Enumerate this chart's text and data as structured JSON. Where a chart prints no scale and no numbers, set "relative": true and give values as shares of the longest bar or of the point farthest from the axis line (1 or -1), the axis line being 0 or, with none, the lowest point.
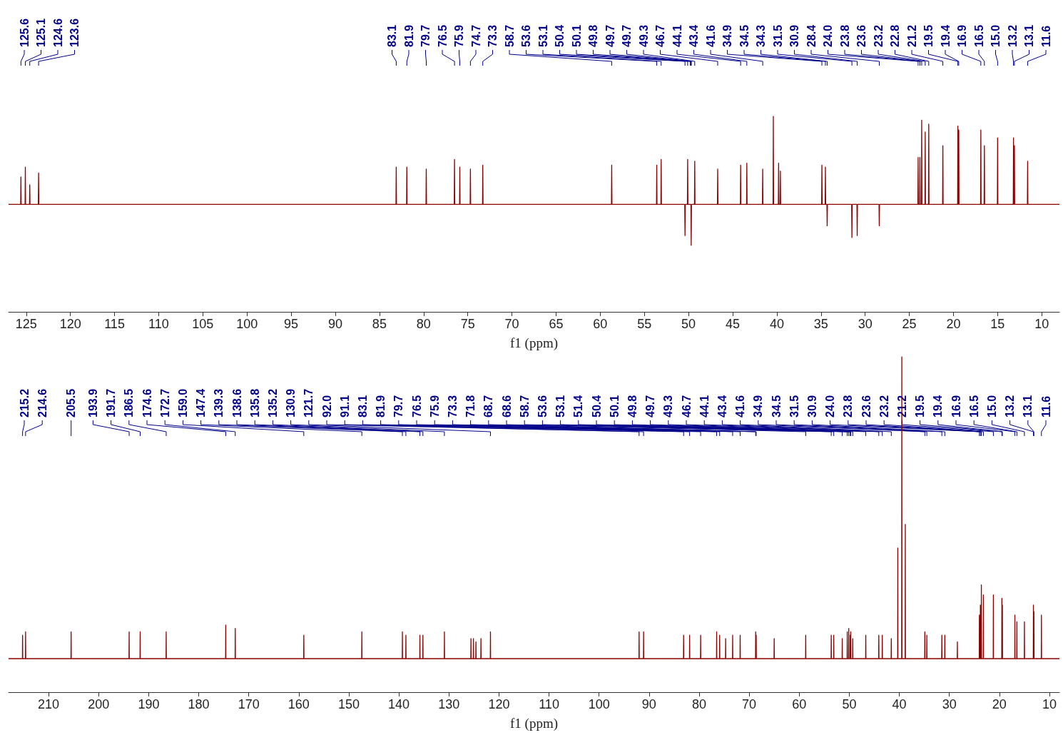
{
  "chart_data": [
    {
      "type": "line",
      "relative": true,
      "marker": "none",
      "line_style": "solid",
      "color": "#8b0000",
      "xlabel": "f1 (ppm)",
      "xlim": [
        127,
        8
      ],
      "xticks": [
        125,
        120,
        115,
        110,
        105,
        100,
        95,
        90,
        85,
        80,
        75,
        70,
        65,
        60,
        55,
        50,
        45,
        40,
        35,
        30,
        25,
        20,
        15,
        10
      ],
      "x": [
        127,
        125.63,
        125.6,
        125.57,
        125.13,
        125.1,
        125.07,
        124.63,
        124.6,
        124.57,
        123.63,
        123.6,
        123.57,
        83.13,
        83.1,
        83.07,
        81.93,
        81.9,
        81.87,
        79.73,
        79.7,
        79.67,
        76.53,
        76.5,
        76.47,
        75.93,
        75.9,
        75.87,
        74.73,
        74.7,
        74.67,
        73.33,
        73.3,
        73.27,
        58.73,
        58.7,
        58.67,
        53.63,
        53.6,
        53.57,
        53.13,
        53.1,
        53.07,
        50.43,
        50.4,
        50.37,
        50.13,
        50.1,
        50.07,
        49.73,
        49.7,
        49.67,
        49.33,
        49.3,
        49.27,
        46.73,
        46.7,
        46.67,
        44.13,
        44.1,
        44.07,
        43.43,
        43.4,
        43.37,
        41.63,
        41.6,
        41.57,
        40.43,
        40.4,
        40.37,
        39.83,
        39.8,
        39.77,
        39.63,
        39.6,
        39.57,
        34.93,
        34.9,
        34.87,
        34.53,
        34.5,
        34.47,
        34.33,
        34.3,
        34.27,
        31.53,
        31.5,
        31.47,
        30.93,
        30.9,
        30.87,
        28.43,
        28.4,
        28.37,
        24.03,
        24,
        23.97,
        23.83,
        23.8,
        23.77,
        23.63,
        23.6,
        23.57,
        23.23,
        23.2,
        23.17,
        22.83,
        22.8,
        22.77,
        21.23,
        21.2,
        21.17,
        19.53,
        19.5,
        19.47,
        19.43,
        19.4,
        19.37,
        16.93,
        16.9,
        16.87,
        16.53,
        16.5,
        16.47,
        15.03,
        15,
        14.97,
        13.23,
        13.2,
        13.17,
        13.13,
        13.1,
        13.07,
        11.63,
        11.6,
        11.57,
        8
      ],
      "values": [
        0.55,
        0.55,
        0.69,
        0.55,
        0.55,
        0.74,
        0.55,
        0.55,
        0.65,
        0.55,
        0.55,
        0.71,
        0.55,
        0.55,
        0.74,
        0.55,
        0.55,
        0.74,
        0.55,
        0.55,
        0.73,
        0.55,
        0.55,
        0.78,
        0.55,
        0.55,
        0.74,
        0.55,
        0.55,
        0.73,
        0.55,
        0.55,
        0.75,
        0.55,
        0.55,
        0.75,
        0.55,
        0.55,
        0.75,
        0.55,
        0.55,
        0.78,
        0.55,
        0.55,
        0.39,
        0.55,
        0.55,
        0.78,
        0.55,
        0.55,
        0.34,
        0.55,
        0.55,
        0.77,
        0.55,
        0.55,
        0.73,
        0.55,
        0.55,
        0.75,
        0.55,
        0.55,
        0.76,
        0.55,
        0.55,
        0.73,
        0.55,
        0.55,
        1,
        0.55,
        0.55,
        0.76,
        0.55,
        0.55,
        0.72,
        0.55,
        0.55,
        0.75,
        0.55,
        0.55,
        0.74,
        0.55,
        0.55,
        0.44,
        0.55,
        0.55,
        0.38,
        0.55,
        0.55,
        0.39,
        0.55,
        0.55,
        0.44,
        0.55,
        0.55,
        0.79,
        0.55,
        0.55,
        0.79,
        0.55,
        0.55,
        0.98,
        0.55,
        0.55,
        0.92,
        0.55,
        0.55,
        0.96,
        0.55,
        0.55,
        0.85,
        0.55,
        0.55,
        0.95,
        0.55,
        0.55,
        0.93,
        0.55,
        0.55,
        0.93,
        0.55,
        0.55,
        0.85,
        0.55,
        0.55,
        0.89,
        0.55,
        0.55,
        0.89,
        0.55,
        0.55,
        0.85,
        0.55,
        0.55,
        0.77,
        0.55,
        0.55
      ],
      "annotations": [
        {
          "text": "125.6",
          "x": 125.6
        },
        {
          "text": "125.1",
          "x": 125.1
        },
        {
          "text": "124.6",
          "x": 124.6
        },
        {
          "text": "123.6",
          "x": 123.6
        },
        {
          "text": "83.1",
          "x": 83.1
        },
        {
          "text": "81.9",
          "x": 81.9
        },
        {
          "text": "79.7",
          "x": 79.7
        },
        {
          "text": "76.5",
          "x": 76.5
        },
        {
          "text": "75.9",
          "x": 75.9
        },
        {
          "text": "74.7",
          "x": 74.7
        },
        {
          "text": "73.3",
          "x": 73.3
        },
        {
          "text": "58.7",
          "x": 58.7
        },
        {
          "text": "53.6",
          "x": 53.6
        },
        {
          "text": "53.1",
          "x": 53.1
        },
        {
          "text": "50.4",
          "x": 50.4
        },
        {
          "text": "50.1",
          "x": 50.1
        },
        {
          "text": "49.8",
          "x": 49.8
        },
        {
          "text": "49.7",
          "x": 49.7
        },
        {
          "text": "49.7",
          "x": 49.7
        },
        {
          "text": "49.3",
          "x": 49.3
        },
        {
          "text": "46.7",
          "x": 46.7
        },
        {
          "text": "44.1",
          "x": 44.1
        },
        {
          "text": "43.4",
          "x": 43.4
        },
        {
          "text": "41.6",
          "x": 41.6
        },
        {
          "text": "34.9",
          "x": 34.9
        },
        {
          "text": "34.5",
          "x": 34.5
        },
        {
          "text": "34.3",
          "x": 34.3
        },
        {
          "text": "31.5",
          "x": 31.5
        },
        {
          "text": "30.9",
          "x": 30.9
        },
        {
          "text": "28.4",
          "x": 28.4
        },
        {
          "text": "24.0",
          "x": 24.0
        },
        {
          "text": "23.8",
          "x": 23.8
        },
        {
          "text": "23.6",
          "x": 23.6
        },
        {
          "text": "23.2",
          "x": 23.2
        },
        {
          "text": "22.8",
          "x": 22.8
        },
        {
          "text": "21.2",
          "x": 21.2
        },
        {
          "text": "19.5",
          "x": 19.5
        },
        {
          "text": "19.4",
          "x": 19.4
        },
        {
          "text": "16.9",
          "x": 16.9
        },
        {
          "text": "16.5",
          "x": 16.5
        },
        {
          "text": "15.0",
          "x": 15.0
        },
        {
          "text": "13.2",
          "x": 13.2
        },
        {
          "text": "13.1",
          "x": 13.1
        },
        {
          "text": "11.6",
          "x": 11.6
        }
      ]
    },
    {
      "type": "line",
      "relative": true,
      "marker": "none",
      "line_style": "solid",
      "color": "#8b0000",
      "xlabel": "f1 (ppm)",
      "xlim": [
        218,
        8
      ],
      "xticks": [
        210,
        200,
        190,
        180,
        170,
        160,
        150,
        140,
        130,
        120,
        110,
        100,
        90,
        80,
        70,
        60,
        50,
        40,
        30,
        20,
        10
      ],
      "x": [
        218,
        215.23,
        215.2,
        215.17,
        214.63,
        214.6,
        214.57,
        205.53,
        205.5,
        205.47,
        193.93,
        193.9,
        193.87,
        191.73,
        191.7,
        191.67,
        186.53,
        186.5,
        186.47,
        174.63,
        174.6,
        174.57,
        172.73,
        172.7,
        172.67,
        159.03,
        159,
        158.97,
        147.43,
        147.4,
        147.37,
        139.33,
        139.3,
        139.27,
        138.63,
        138.6,
        138.57,
        135.83,
        135.8,
        135.77,
        135.23,
        135.2,
        135.17,
        130.93,
        130.9,
        130.87,
        125.63,
        125.6,
        125.57,
        125.13,
        125.1,
        125.07,
        124.63,
        124.6,
        124.57,
        123.63,
        123.6,
        123.57,
        121.73,
        121.7,
        121.67,
        92.03,
        92,
        91.97,
        91.13,
        91.1,
        91.07,
        83.13,
        83.1,
        83.07,
        81.93,
        81.9,
        81.87,
        79.73,
        79.7,
        79.67,
        76.53,
        76.5,
        76.47,
        75.93,
        75.9,
        75.87,
        74.73,
        74.7,
        74.67,
        73.33,
        73.3,
        73.27,
        71.83,
        71.8,
        71.77,
        68.73,
        68.7,
        68.67,
        68.63,
        68.6,
        68.57,
        65.03,
        65,
        64.97,
        58.73,
        58.7,
        58.67,
        53.63,
        53.6,
        53.57,
        53.13,
        53.1,
        53.07,
        51.43,
        51.4,
        51.37,
        50.43,
        50.4,
        50.37,
        50.13,
        50.1,
        50.07,
        49.83,
        49.8,
        49.77,
        49.73,
        49.7,
        49.67,
        49.33,
        49.3,
        49.27,
        46.73,
        46.7,
        46.67,
        44.13,
        44.1,
        44.07,
        43.43,
        43.4,
        43.37,
        41.63,
        41.6,
        41.57,
        40.33,
        40.3,
        40.27,
        39.53,
        39.5,
        39.47,
        38.83,
        38.8,
        38.77,
        34.93,
        34.9,
        34.87,
        34.53,
        34.5,
        34.47,
        31.53,
        31.5,
        31.47,
        30.93,
        30.9,
        30.87,
        28.43,
        28.4,
        28.37,
        24.03,
        24,
        23.97,
        23.83,
        23.8,
        23.77,
        23.63,
        23.6,
        23.57,
        23.23,
        23.2,
        23.17,
        21.23,
        21.2,
        21.17,
        19.53,
        19.5,
        19.47,
        19.43,
        19.4,
        19.37,
        16.93,
        16.9,
        16.87,
        16.53,
        16.5,
        16.47,
        15.03,
        15,
        14.97,
        13.23,
        13.2,
        13.17,
        13.13,
        13.1,
        13.07,
        11.63,
        11.6,
        11.57,
        8
      ],
      "values": [
        0.1,
        0.1,
        0.17,
        0.1,
        0.1,
        0.18,
        0.1,
        0.1,
        0.18,
        0.1,
        0.1,
        0.18,
        0.1,
        0.1,
        0.18,
        0.1,
        0.1,
        0.18,
        0.1,
        0.1,
        0.2,
        0.1,
        0.1,
        0.19,
        0.1,
        0.1,
        0.17,
        0.1,
        0.1,
        0.18,
        0.1,
        0.1,
        0.18,
        0.1,
        0.1,
        0.17,
        0.1,
        0.1,
        0.17,
        0.1,
        0.1,
        0.17,
        0.1,
        0.1,
        0.18,
        0.1,
        0.1,
        0.16,
        0.1,
        0.1,
        0.16,
        0.1,
        0.1,
        0.15,
        0.1,
        0.1,
        0.16,
        0.1,
        0.1,
        0.18,
        0.1,
        0.1,
        0.18,
        0.1,
        0.1,
        0.18,
        0.1,
        0.1,
        0.17,
        0.1,
        0.1,
        0.17,
        0.1,
        0.1,
        0.17,
        0.1,
        0.1,
        0.18,
        0.1,
        0.1,
        0.17,
        0.1,
        0.1,
        0.16,
        0.1,
        0.1,
        0.17,
        0.1,
        0.1,
        0.17,
        0.1,
        0.1,
        0.18,
        0.1,
        0.1,
        0.17,
        0.1,
        0.1,
        0.16,
        0.1,
        0.1,
        0.17,
        0.1,
        0.1,
        0.17,
        0.1,
        0.1,
        0.17,
        0.1,
        0.1,
        0.16,
        0.1,
        0.1,
        0.18,
        0.1,
        0.1,
        0.19,
        0.1,
        0.1,
        0.17,
        0.1,
        0.1,
        0.18,
        0.1,
        0.1,
        0.16,
        0.1,
        0.1,
        0.17,
        0.1,
        0.1,
        0.17,
        0.1,
        0.1,
        0.17,
        0.1,
        0.1,
        0.16,
        0.1,
        0.1,
        0.43,
        0.1,
        0.1,
        1,
        0.1,
        0.1,
        0.5,
        0.1,
        0.1,
        0.18,
        0.1,
        0.1,
        0.17,
        0.1,
        0.1,
        0.17,
        0.1,
        0.1,
        0.17,
        0.1,
        0.1,
        0.15,
        0.1,
        0.1,
        0.23,
        0.1,
        0.1,
        0.26,
        0.1,
        0.1,
        0.32,
        0.1,
        0.1,
        0.29,
        0.1,
        0.1,
        0.29,
        0.1,
        0.1,
        0.28,
        0.1,
        0.1,
        0.26,
        0.1,
        0.1,
        0.23,
        0.1,
        0.1,
        0.21,
        0.1,
        0.1,
        0.21,
        0.1,
        0.1,
        0.26,
        0.1,
        0.1,
        0.24,
        0.1,
        0.1,
        0.23,
        0.1,
        0.1
      ],
      "annotations": [
        {
          "text": "215.2",
          "x": 215.2
        },
        {
          "text": "214.6",
          "x": 214.6
        },
        {
          "text": "205.5",
          "x": 205.5
        },
        {
          "text": "193.9",
          "x": 193.9
        },
        {
          "text": "191.7",
          "x": 191.7
        },
        {
          "text": "186.5",
          "x": 186.5
        },
        {
          "text": "174.6",
          "x": 174.6
        },
        {
          "text": "172.7",
          "x": 172.7
        },
        {
          "text": "159.0",
          "x": 159.0
        },
        {
          "text": "147.4",
          "x": 147.4
        },
        {
          "text": "139.3",
          "x": 139.3
        },
        {
          "text": "138.6",
          "x": 138.6
        },
        {
          "text": "135.8",
          "x": 135.8
        },
        {
          "text": "135.2",
          "x": 135.2
        },
        {
          "text": "130.9",
          "x": 130.9
        },
        {
          "text": "121.7",
          "x": 121.7
        },
        {
          "text": "92.0",
          "x": 92.0
        },
        {
          "text": "91.1",
          "x": 91.1
        },
        {
          "text": "83.1",
          "x": 83.1
        },
        {
          "text": "81.9",
          "x": 81.9
        },
        {
          "text": "79.7",
          "x": 79.7
        },
        {
          "text": "76.5",
          "x": 76.5
        },
        {
          "text": "75.9",
          "x": 75.9
        },
        {
          "text": "73.3",
          "x": 73.3
        },
        {
          "text": "71.8",
          "x": 71.8
        },
        {
          "text": "68.7",
          "x": 68.7
        },
        {
          "text": "68.6",
          "x": 68.6
        },
        {
          "text": "58.7",
          "x": 58.7
        },
        {
          "text": "53.6",
          "x": 53.6
        },
        {
          "text": "53.1",
          "x": 53.1
        },
        {
          "text": "51.4",
          "x": 51.4
        },
        {
          "text": "50.4",
          "x": 50.4
        },
        {
          "text": "50.1",
          "x": 50.1
        },
        {
          "text": "49.8",
          "x": 49.8
        },
        {
          "text": "49.7",
          "x": 49.7
        },
        {
          "text": "49.3",
          "x": 49.3
        },
        {
          "text": "46.7",
          "x": 46.7
        },
        {
          "text": "44.1",
          "x": 44.1
        },
        {
          "text": "43.4",
          "x": 43.4
        },
        {
          "text": "41.6",
          "x": 41.6
        },
        {
          "text": "34.9",
          "x": 34.9
        },
        {
          "text": "34.5",
          "x": 34.5
        },
        {
          "text": "31.5",
          "x": 31.5
        },
        {
          "text": "30.9",
          "x": 30.9
        },
        {
          "text": "24.0",
          "x": 24.0
        },
        {
          "text": "23.8",
          "x": 23.8
        },
        {
          "text": "23.6",
          "x": 23.6
        },
        {
          "text": "23.2",
          "x": 23.2
        },
        {
          "text": "21.2",
          "x": 21.2
        },
        {
          "text": "19.5",
          "x": 19.5
        },
        {
          "text": "19.4",
          "x": 19.4
        },
        {
          "text": "16.9",
          "x": 16.9
        },
        {
          "text": "16.5",
          "x": 16.5
        },
        {
          "text": "15.0",
          "x": 15.0
        },
        {
          "text": "13.2",
          "x": 13.2
        },
        {
          "text": "13.1",
          "x": 13.1
        },
        {
          "text": "11.6",
          "x": 11.6
        }
      ]
    }
  ]
}
